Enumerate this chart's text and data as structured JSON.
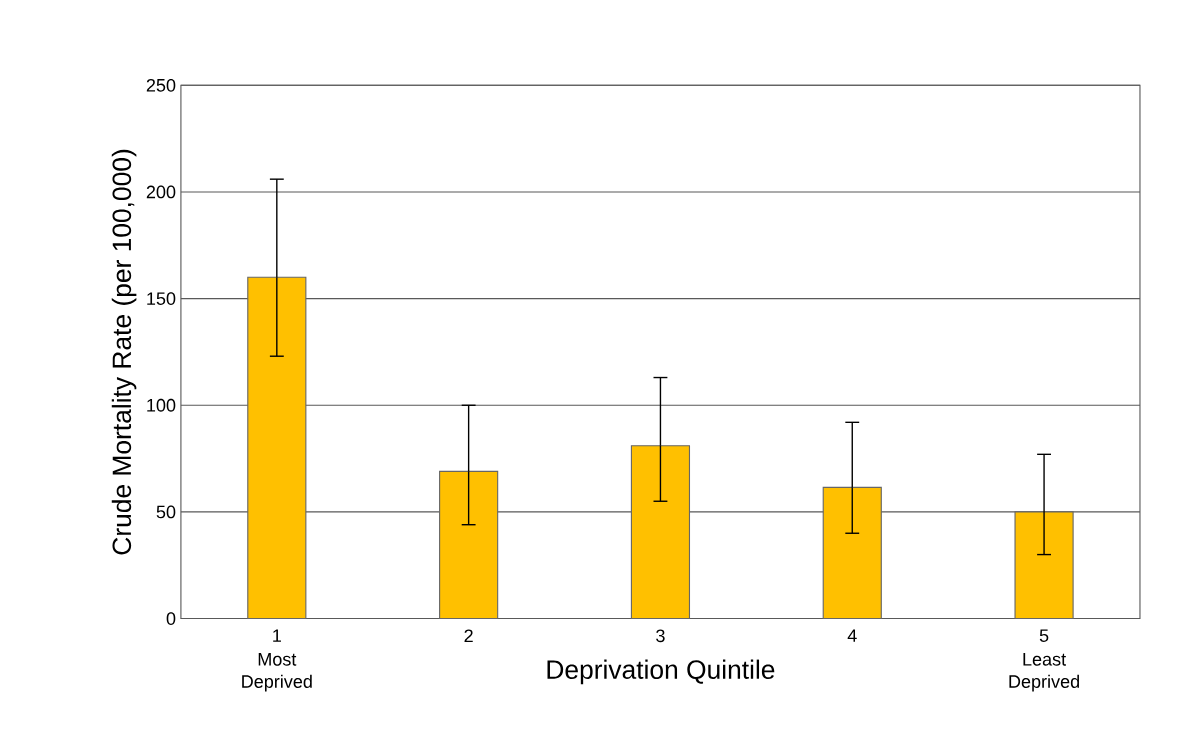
{
  "chart_data": {
    "type": "bar",
    "xlabel": "Deprivation Quintile",
    "ylabel": "Crude Mortality Rate (per 100,000)",
    "categories": [
      "1",
      "2",
      "3",
      "4",
      "5"
    ],
    "values": [
      160,
      69,
      81,
      61.5,
      50
    ],
    "errors": [
      [
        123,
        206
      ],
      [
        44,
        100
      ],
      [
        55,
        113
      ],
      [
        40,
        92
      ],
      [
        30,
        77
      ]
    ],
    "color": "#ffc000",
    "ylim": [
      0,
      250
    ],
    "yticks": [
      0,
      50,
      100,
      150,
      200,
      250
    ],
    "grid": "y",
    "annotations": [
      "Most Deprived",
      "Least Deprived"
    ]
  }
}
